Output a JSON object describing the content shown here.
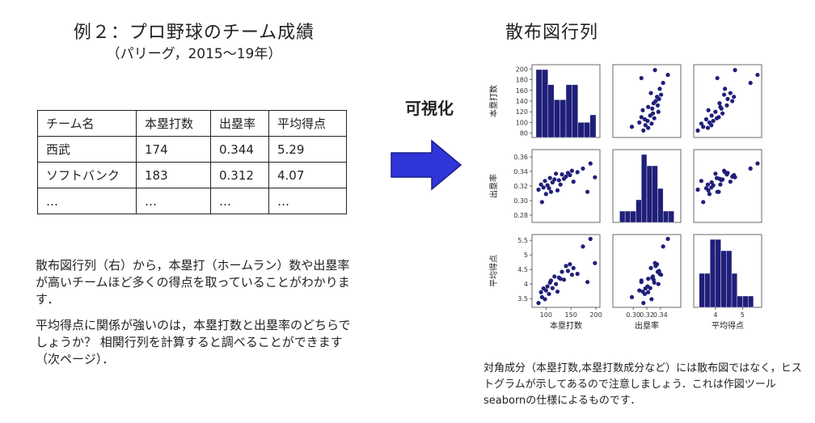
{
  "left": {
    "title": "例２：プロ野球のチーム成績",
    "subtitle": "（パリーグ，2015～19年）",
    "table": {
      "headers": [
        "チーム名",
        "本塁打数",
        "出塁率",
        "平均得点"
      ],
      "rows": [
        [
          "西武",
          "174",
          "0.344",
          "5.29"
        ],
        [
          "ソフトバンク",
          "183",
          "0.312",
          "4.07"
        ],
        [
          "…",
          "…",
          "…",
          "…"
        ]
      ]
    },
    "note1": "散布図行列（右）から，本塁打（ホームラン）数や出塁率が高いチームほど多くの得点を取っていることがわかります．",
    "note2": "平均得点に関係が強いのは，本塁打数と出塁率のどちらでしょうか？ 相関行列を計算すると調べることができます（次ページ）．"
  },
  "center": {
    "label": "可視化",
    "arrow_icon": "right-arrow-icon",
    "arrow_color": "#2f35d6"
  },
  "right": {
    "title": "散布図行列",
    "caption": "対角成分（本塁打数,本塁打数成分など）には散布図ではなく，ヒストグラムが示してあるので注意しましょう．これは作図ツール seabornの仕様によるものです．"
  },
  "chart_data": {
    "type": "scatter",
    "variables": [
      "本塁打数",
      "出塁率",
      "平均得点"
    ],
    "marker_color": "#1f1f7a",
    "axes": {
      "本塁打数": {
        "range": [
          72,
          208
        ],
        "ticks": [
          80,
          100,
          120,
          140,
          160,
          180,
          200
        ],
        "bottom_ticks": [
          100,
          150,
          200
        ]
      },
      "出塁率": {
        "range": [
          0.27,
          0.37
        ],
        "ticks": [
          0.28,
          0.3,
          0.32,
          0.34,
          0.36
        ],
        "bottom_ticks": [
          0.3,
          0.32,
          0.34
        ]
      },
      "平均得点": {
        "range": [
          3.2,
          5.7
        ],
        "ticks": [
          3.5,
          4.0,
          4.5,
          5.0,
          5.5
        ],
        "bottom_ticks": [
          4,
          5
        ]
      }
    },
    "points": [
      {
        "hr": 85,
        "obp": 0.315,
        "runs": 3.35
      },
      {
        "hr": 90,
        "obp": 0.322,
        "runs": 3.72
      },
      {
        "hr": 92,
        "obp": 0.298,
        "runs": 3.55
      },
      {
        "hr": 95,
        "obp": 0.318,
        "runs": 3.85
      },
      {
        "hr": 98,
        "obp": 0.327,
        "runs": 3.48
      },
      {
        "hr": 100,
        "obp": 0.309,
        "runs": 3.78
      },
      {
        "hr": 103,
        "obp": 0.321,
        "runs": 3.92
      },
      {
        "hr": 106,
        "obp": 0.317,
        "runs": 3.66
      },
      {
        "hr": 108,
        "obp": 0.331,
        "runs": 4.05
      },
      {
        "hr": 110,
        "obp": 0.312,
        "runs": 4.12
      },
      {
        "hr": 113,
        "obp": 0.325,
        "runs": 3.86
      },
      {
        "hr": 117,
        "obp": 0.329,
        "runs": 4.26
      },
      {
        "hr": 120,
        "obp": 0.337,
        "runs": 4.0
      },
      {
        "hr": 123,
        "obp": 0.314,
        "runs": 3.74
      },
      {
        "hr": 126,
        "obp": 0.328,
        "runs": 4.22
      },
      {
        "hr": 129,
        "obp": 0.322,
        "runs": 4.18
      },
      {
        "hr": 132,
        "obp": 0.336,
        "runs": 4.42
      },
      {
        "hr": 136,
        "obp": 0.33,
        "runs": 4.15
      },
      {
        "hr": 140,
        "obp": 0.333,
        "runs": 4.62
      },
      {
        "hr": 144,
        "obp": 0.338,
        "runs": 4.45
      },
      {
        "hr": 148,
        "obp": 0.335,
        "runs": 4.68
      },
      {
        "hr": 152,
        "obp": 0.341,
        "runs": 4.32
      },
      {
        "hr": 155,
        "obp": 0.326,
        "runs": 4.55
      },
      {
        "hr": 163,
        "obp": 0.339,
        "runs": 4.35
      },
      {
        "hr": 174,
        "obp": 0.344,
        "runs": 5.29
      },
      {
        "hr": 183,
        "obp": 0.312,
        "runs": 4.07
      },
      {
        "hr": 189,
        "obp": 0.351,
        "runs": 5.55
      },
      {
        "hr": 198,
        "obp": 0.332,
        "runs": 4.72
      }
    ],
    "histograms": {
      "本塁打数": {
        "edges": [
          80,
          92,
          104,
          116,
          128,
          140,
          152,
          164,
          176,
          188,
          200
        ],
        "counts": [
          9,
          9,
          7,
          5,
          5,
          7,
          7,
          2,
          2,
          3
        ]
      },
      "出塁率": {
        "edges": [
          0.28,
          0.288,
          0.296,
          0.304,
          0.312,
          0.32,
          0.328,
          0.336,
          0.344,
          0.352,
          0.36
        ],
        "counts": [
          1,
          1,
          1,
          2,
          6,
          5,
          5,
          3,
          1,
          1
        ]
      },
      "平均得点": {
        "edges": [
          3.4,
          3.6,
          3.8,
          4.0,
          4.2,
          4.4,
          4.6,
          4.8,
          5.0,
          5.2,
          5.4
        ],
        "counts": [
          3,
          3,
          6,
          6,
          5,
          5,
          3,
          1,
          1,
          1
        ]
      }
    }
  }
}
